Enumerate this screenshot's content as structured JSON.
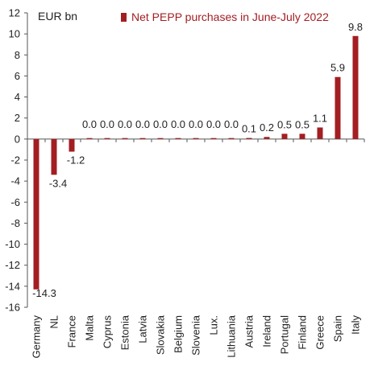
{
  "chart_data": {
    "type": "bar",
    "unit_label": "EUR bn",
    "legend": [
      {
        "name": "Net PEPP purchases in June-July 2022",
        "color": "#a31e22"
      }
    ],
    "categories": [
      "Germany",
      "NL",
      "France",
      "Malta",
      "Cyprus",
      "Estonia",
      "Latvia",
      "Slovakia",
      "Belgium",
      "Slovenia",
      "Lux.",
      "Lithuania",
      "Austria",
      "Ireland",
      "Portugal",
      "Finland",
      "Greece",
      "Spain",
      "Italy"
    ],
    "series": [
      {
        "name": "Net PEPP purchases in June-July 2022",
        "values": [
          -14.3,
          -3.4,
          -1.2,
          0.0,
          0.0,
          0.0,
          0.0,
          0.0,
          0.0,
          0.0,
          0.0,
          0.0,
          0.1,
          0.2,
          0.5,
          0.5,
          1.1,
          5.9,
          9.8
        ],
        "labels": [
          "-14.3",
          "-3.4",
          "-1.2",
          "0.0",
          "0.0",
          "0.0",
          "0.0",
          "0.0",
          "0.0",
          "0.0",
          "0.0",
          "0.0",
          "0.1",
          "0.2",
          "0.5",
          "0.5",
          "1.1",
          "5.9",
          "9.8"
        ]
      }
    ],
    "ylim": [
      -16,
      12
    ],
    "yticks": [
      "12",
      "10",
      "8",
      "6",
      "4",
      "2",
      "0",
      "-2",
      "-4",
      "-6",
      "-8",
      "-10",
      "-12",
      "-14",
      "-16"
    ],
    "grid": false,
    "legend_position": "top"
  }
}
